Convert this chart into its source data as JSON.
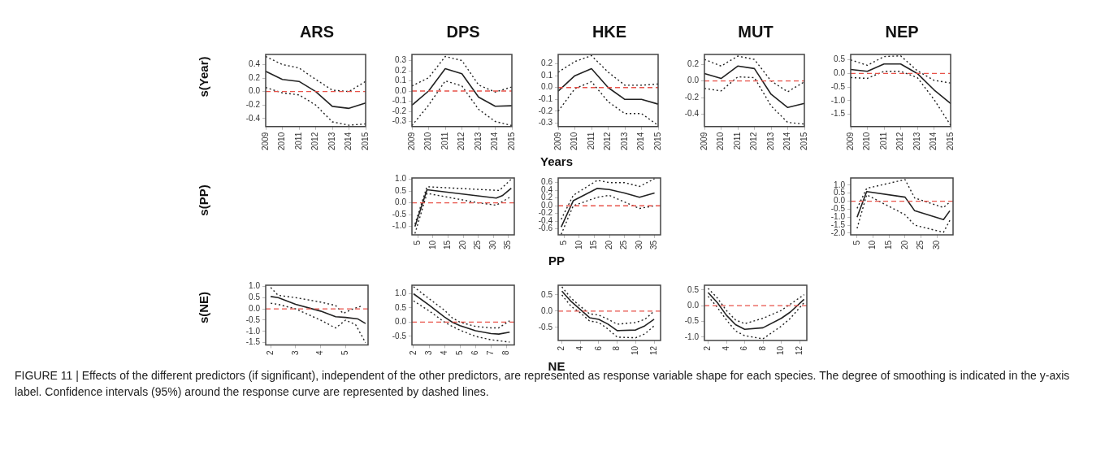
{
  "chart_data": [
    {
      "type": "line",
      "title": "ARS",
      "ylabel": "s(Year)",
      "categories": [
        "2009",
        "2010",
        "2011",
        "2012",
        "2013",
        "2014",
        "2015"
      ],
      "ylim": [
        -0.52,
        0.55
      ],
      "yticks": [
        -0.4,
        -0.2,
        {
          "value": 0,
          "label": "0.0"
        },
        0.2,
        0.4
      ],
      "ref_lines": [
        {
          "axis": "y",
          "value": 0,
          "color": "#e8534a",
          "line_style": "dashed"
        }
      ],
      "annotations": [
        "FIGURE 11 | Effects of the different predictors (if significant), independent of the other predictors, are represented as response variable shape for each species. The degree of smoothing is indicated in the y-axis label. Confidence intervals (95%) around the response curve are represented by dashed lines."
      ],
      "series": [
        {
          "color": "#222222",
          "values": [
            0.3,
            0.18,
            0.15,
            0.0,
            -0.22,
            -0.25,
            -0.17
          ]
        },
        {
          "color": "#222222",
          "line_style": "dotted",
          "values": [
            0.52,
            0.4,
            0.35,
            0.18,
            0.02,
            0.0,
            0.15
          ]
        },
        {
          "color": "#222222",
          "line_style": "dotted",
          "values": [
            0.06,
            -0.02,
            -0.05,
            -0.2,
            -0.45,
            -0.5,
            -0.48
          ]
        }
      ]
    },
    {
      "type": "line",
      "title": "DPS",
      "categories": [
        "2009",
        "2010",
        "2011",
        "2012",
        "2013",
        "2014",
        "2015"
      ],
      "ylim": [
        -0.35,
        0.36
      ],
      "yticks": [
        -0.3,
        -0.2,
        -0.1,
        {
          "value": 0,
          "label": "0.0"
        },
        0.1,
        0.2,
        0.3
      ],
      "ref_lines": [
        {
          "axis": "y",
          "value": 0,
          "color": "#e8534a",
          "line_style": "dashed"
        }
      ],
      "series": [
        {
          "color": "#222222",
          "values": [
            -0.14,
            0.0,
            0.22,
            0.17,
            -0.06,
            -0.15,
            -0.145
          ]
        },
        {
          "color": "#222222",
          "line_style": "dotted",
          "values": [
            0.05,
            0.13,
            0.34,
            0.3,
            0.06,
            -0.01,
            0.04
          ]
        },
        {
          "color": "#222222",
          "line_style": "dotted",
          "values": [
            -0.34,
            -0.14,
            0.1,
            0.05,
            -0.18,
            -0.3,
            -0.34
          ]
        }
      ]
    },
    {
      "type": "line",
      "title": "HKE",
      "xlabel": "Years",
      "categories": [
        "2009",
        "2010",
        "2011",
        "2012",
        "2013",
        "2014",
        "2015"
      ],
      "ylim": [
        -0.33,
        0.28
      ],
      "yticks": [
        -0.3,
        -0.2,
        -0.1,
        {
          "value": 0,
          "label": "0.0"
        },
        0.1,
        0.2
      ],
      "ref_lines": [
        {
          "axis": "y",
          "value": 0,
          "color": "#e8534a",
          "line_style": "dashed"
        }
      ],
      "series": [
        {
          "color": "#222222",
          "values": [
            -0.03,
            0.1,
            0.16,
            0.0,
            -0.1,
            -0.1,
            -0.14
          ]
        },
        {
          "color": "#222222",
          "line_style": "dotted",
          "values": [
            0.13,
            0.22,
            0.27,
            0.13,
            0.02,
            0.02,
            0.03
          ]
        },
        {
          "color": "#222222",
          "line_style": "dotted",
          "values": [
            -0.2,
            -0.01,
            0.05,
            -0.12,
            -0.22,
            -0.22,
            -0.32
          ]
        }
      ]
    },
    {
      "type": "line",
      "title": "MUT",
      "categories": [
        "2009",
        "2010",
        "2011",
        "2012",
        "2013",
        "2014",
        "2015"
      ],
      "ylim": [
        -0.55,
        0.32
      ],
      "yticks": [
        -0.4,
        -0.2,
        {
          "value": 0,
          "label": "0.0"
        },
        0.2
      ],
      "ref_lines": [
        {
          "axis": "y",
          "value": 0,
          "color": "#e8534a",
          "line_style": "dashed"
        }
      ],
      "series": [
        {
          "color": "#222222",
          "values": [
            0.09,
            0.03,
            0.18,
            0.15,
            -0.16,
            -0.32,
            -0.27
          ]
        },
        {
          "color": "#222222",
          "line_style": "dotted",
          "values": [
            0.26,
            0.18,
            0.3,
            0.26,
            0.0,
            -0.13,
            -0.01
          ]
        },
        {
          "color": "#222222",
          "line_style": "dotted",
          "values": [
            -0.09,
            -0.12,
            0.05,
            0.04,
            -0.3,
            -0.5,
            -0.52
          ]
        }
      ]
    },
    {
      "type": "line",
      "title": "NEP",
      "categories": [
        "2009",
        "2010",
        "2011",
        "2012",
        "2013",
        "2014",
        "2015"
      ],
      "ylim": [
        -1.95,
        0.7
      ],
      "yticks": [
        -1.5,
        {
          "value": -1,
          "label": "-1.0"
        },
        -0.5,
        {
          "value": 0,
          "label": "0.0"
        },
        0.5
      ],
      "ref_lines": [
        {
          "axis": "y",
          "value": 0,
          "color": "#e8534a",
          "line_style": "dashed"
        }
      ],
      "series": [
        {
          "color": "#222222",
          "values": [
            0.15,
            0.08,
            0.35,
            0.35,
            0.0,
            -0.6,
            -1.1
          ]
        },
        {
          "color": "#222222",
          "line_style": "dotted",
          "values": [
            0.5,
            0.3,
            0.62,
            0.65,
            0.1,
            -0.25,
            -0.35
          ]
        },
        {
          "color": "#222222",
          "line_style": "dotted",
          "values": [
            -0.15,
            -0.18,
            0.08,
            0.08,
            -0.15,
            -0.95,
            -1.9
          ]
        }
      ]
    },
    {
      "type": "line",
      "ylabel": "s(PP)",
      "xlim": [
        3,
        37
      ],
      "xticks": [
        5,
        10,
        15,
        20,
        25,
        30,
        35
      ],
      "ylim": [
        -1.35,
        1.05
      ],
      "yticks": [
        {
          "value": -1,
          "label": "-1.0"
        },
        -0.5,
        {
          "value": 0,
          "label": "0.0"
        },
        0.5,
        {
          "value": 1,
          "label": "1.0"
        }
      ],
      "ref_lines": [
        {
          "axis": "y",
          "value": 0,
          "color": "#e8534a",
          "line_style": "dashed"
        }
      ],
      "series": [
        {
          "color": "#222222",
          "x": [
            4,
            8,
            31,
            33,
            36
          ],
          "values": [
            -1.0,
            0.55,
            0.2,
            0.3,
            0.62
          ]
        },
        {
          "color": "#222222",
          "line_style": "dotted",
          "x": [
            4,
            8,
            32,
            36
          ],
          "values": [
            -0.9,
            0.68,
            0.52,
            1.0
          ]
        },
        {
          "color": "#222222",
          "line_style": "dotted",
          "x": [
            4,
            8,
            25,
            31,
            33,
            36
          ],
          "values": [
            -1.3,
            0.4,
            0.0,
            -0.1,
            0.05,
            0.27
          ]
        }
      ]
    },
    {
      "type": "line",
      "xlabel": "PP",
      "xlim": [
        3,
        37
      ],
      "xticks": [
        5,
        10,
        15,
        20,
        25,
        30,
        35
      ],
      "ylim": [
        -0.75,
        0.72
      ],
      "yticks": [
        -0.6,
        -0.4,
        -0.2,
        {
          "value": 0,
          "label": "0.0"
        },
        0.2,
        0.4,
        0.6
      ],
      "ref_lines": [
        {
          "axis": "y",
          "value": 0,
          "color": "#e8534a",
          "line_style": "dashed"
        }
      ],
      "series": [
        {
          "color": "#222222",
          "x": [
            4,
            8,
            16,
            20,
            25,
            30,
            35
          ],
          "values": [
            -0.55,
            0.13,
            0.45,
            0.42,
            0.33,
            0.22,
            0.33
          ]
        },
        {
          "color": "#222222",
          "line_style": "dotted",
          "x": [
            4,
            8,
            16,
            20,
            25,
            30,
            35
          ],
          "values": [
            -0.35,
            0.27,
            0.66,
            0.6,
            0.6,
            0.5,
            0.7
          ]
        },
        {
          "color": "#222222",
          "line_style": "dotted",
          "x": [
            4,
            8,
            16,
            20,
            25,
            30,
            35
          ],
          "values": [
            -0.74,
            0.0,
            0.22,
            0.27,
            0.1,
            -0.07,
            0.0
          ]
        }
      ]
    },
    {
      "type": "line",
      "xlim": [
        3,
        35
      ],
      "xticks": [
        5,
        10,
        15,
        20,
        25,
        30
      ],
      "ylim": [
        -2.1,
        1.45
      ],
      "yticks": [
        {
          "value": -2,
          "label": "-2.0"
        },
        -1.5,
        {
          "value": -1,
          "label": "-1.0"
        },
        -0.5,
        {
          "value": 0,
          "label": "0.0"
        },
        0.5,
        {
          "value": 1,
          "label": "1.0"
        }
      ],
      "ref_lines": [
        {
          "axis": "y",
          "value": 0,
          "color": "#e8534a",
          "line_style": "dashed"
        }
      ],
      "series": [
        {
          "color": "#222222",
          "x": [
            5,
            8,
            20,
            23,
            32,
            34
          ],
          "values": [
            -1.0,
            0.6,
            0.25,
            -0.6,
            -1.15,
            -0.6
          ]
        },
        {
          "color": "#222222",
          "line_style": "dotted",
          "x": [
            5,
            8,
            20,
            23,
            32,
            34
          ],
          "values": [
            -0.45,
            0.8,
            1.35,
            0.2,
            -0.4,
            -0.05
          ]
        },
        {
          "color": "#222222",
          "line_style": "dotted",
          "x": [
            5,
            8,
            20,
            23,
            32,
            34
          ],
          "values": [
            -1.7,
            0.4,
            -0.85,
            -1.5,
            -1.95,
            -1.2
          ]
        }
      ]
    },
    {
      "type": "line",
      "ylabel": "s(NE)",
      "xlim": [
        1.8,
        5.9
      ],
      "xticks": [
        2,
        3,
        4,
        5
      ],
      "ylim": [
        -1.6,
        1.05
      ],
      "yticks": [
        -1.5,
        {
          "value": -1,
          "label": "-1.0"
        },
        -0.5,
        {
          "value": 0,
          "label": "0.0"
        },
        0.5,
        {
          "value": 1,
          "label": "1.0"
        }
      ],
      "ref_lines": [
        {
          "axis": "y",
          "value": 0,
          "color": "#e8534a",
          "line_style": "dashed"
        }
      ],
      "series": [
        {
          "color": "#222222",
          "x": [
            2,
            2.3,
            3,
            4,
            4.6,
            5,
            5.5,
            5.8
          ],
          "values": [
            0.55,
            0.5,
            0.2,
            -0.1,
            -0.35,
            -0.38,
            -0.45,
            -0.65
          ]
        },
        {
          "color": "#222222",
          "line_style": "dotted",
          "x": [
            2,
            2.3,
            3,
            4,
            4.6,
            4.9,
            5.3,
            5.7
          ],
          "values": [
            0.95,
            0.6,
            0.5,
            0.3,
            0.15,
            -0.2,
            0.0,
            0.15
          ]
        },
        {
          "color": "#222222",
          "line_style": "dotted",
          "x": [
            2,
            2.3,
            3,
            4,
            4.6,
            5,
            5.4,
            5.8
          ],
          "values": [
            0.25,
            0.2,
            0.0,
            -0.5,
            -0.85,
            -0.5,
            -0.7,
            -1.5
          ]
        }
      ]
    },
    {
      "type": "line",
      "xlim": [
        1.9,
        8.5
      ],
      "xticks": [
        2,
        3,
        4,
        5,
        6,
        7,
        8
      ],
      "ylim": [
        -0.8,
        1.3
      ],
      "yticks": [
        -0.5,
        {
          "value": 0,
          "label": "0.0"
        },
        0.5,
        {
          "value": 1,
          "label": "1.0"
        }
      ],
      "ref_lines": [
        {
          "axis": "y",
          "value": 0,
          "color": "#e8534a",
          "line_style": "dashed"
        }
      ],
      "series": [
        {
          "color": "#222222",
          "x": [
            2,
            3,
            4,
            4.5,
            5,
            6,
            7,
            7.5,
            8.2
          ],
          "values": [
            1.0,
            0.6,
            0.18,
            0.0,
            -0.12,
            -0.3,
            -0.4,
            -0.42,
            -0.35
          ]
        },
        {
          "color": "#222222",
          "line_style": "dotted",
          "x": [
            2,
            3,
            4,
            4.5,
            5,
            6,
            7,
            7.5,
            8.2
          ],
          "values": [
            1.25,
            0.83,
            0.42,
            0.15,
            0.0,
            -0.15,
            -0.2,
            -0.2,
            0.05
          ]
        },
        {
          "color": "#222222",
          "line_style": "dotted",
          "x": [
            2,
            3,
            4,
            4.5,
            5,
            6,
            7,
            8.2
          ],
          "values": [
            0.75,
            0.4,
            0.0,
            -0.15,
            -0.28,
            -0.5,
            -0.62,
            -0.7
          ]
        }
      ]
    },
    {
      "type": "line",
      "xlabel": "NE",
      "xlim": [
        1.6,
        12.7
      ],
      "xticks": [
        2,
        4,
        6,
        8,
        10,
        12
      ],
      "ylim": [
        -0.9,
        0.8
      ],
      "yticks": [
        -0.5,
        {
          "value": 0,
          "label": "0.0"
        },
        0.5
      ],
      "ref_lines": [
        {
          "axis": "y",
          "value": 0,
          "color": "#e8534a",
          "line_style": "dashed"
        }
      ],
      "series": [
        {
          "color": "#222222",
          "x": [
            2,
            3,
            4,
            5,
            6,
            7,
            8,
            10,
            11,
            12
          ],
          "values": [
            0.62,
            0.3,
            0.05,
            -0.2,
            -0.25,
            -0.4,
            -0.6,
            -0.58,
            -0.45,
            -0.25
          ]
        },
        {
          "color": "#222222",
          "line_style": "dotted",
          "x": [
            2,
            3,
            4,
            5,
            6,
            7,
            8,
            10,
            11,
            12
          ],
          "values": [
            0.75,
            0.4,
            0.15,
            -0.08,
            -0.12,
            -0.25,
            -0.4,
            -0.35,
            -0.25,
            0.0
          ]
        },
        {
          "color": "#222222",
          "line_style": "dotted",
          "x": [
            2,
            3,
            4,
            5,
            6,
            7,
            8,
            10,
            11,
            12
          ],
          "values": [
            0.5,
            0.15,
            -0.05,
            -0.3,
            -0.35,
            -0.55,
            -0.8,
            -0.82,
            -0.7,
            -0.45
          ]
        }
      ]
    },
    {
      "type": "line",
      "xlim": [
        1.6,
        12.8
      ],
      "xticks": [
        2,
        4,
        6,
        8,
        10,
        12
      ],
      "ylim": [
        -1.1,
        0.65
      ],
      "yticks": [
        {
          "value": -1,
          "label": "-1.0"
        },
        -0.5,
        {
          "value": 0,
          "label": "0.0"
        },
        0.5
      ],
      "ref_lines": [
        {
          "axis": "y",
          "value": 0,
          "color": "#e8534a",
          "line_style": "dashed"
        }
      ],
      "series": [
        {
          "color": "#222222",
          "x": [
            2,
            3,
            4,
            5,
            6,
            8,
            10,
            11,
            12.5
          ],
          "values": [
            0.42,
            0.1,
            -0.3,
            -0.6,
            -0.75,
            -0.7,
            -0.4,
            -0.2,
            0.2
          ]
        },
        {
          "color": "#222222",
          "line_style": "dotted",
          "x": [
            2,
            3,
            4,
            5,
            6,
            8,
            10,
            11,
            12.5
          ],
          "values": [
            0.55,
            0.25,
            -0.15,
            -0.45,
            -0.57,
            -0.4,
            -0.15,
            0.05,
            0.35
          ]
        },
        {
          "color": "#222222",
          "line_style": "dotted",
          "x": [
            2,
            3,
            4,
            5,
            6,
            8,
            10,
            11,
            12.5
          ],
          "values": [
            0.3,
            -0.05,
            -0.45,
            -0.8,
            -0.95,
            -1.05,
            -0.65,
            -0.4,
            0.1
          ]
        }
      ]
    }
  ]
}
